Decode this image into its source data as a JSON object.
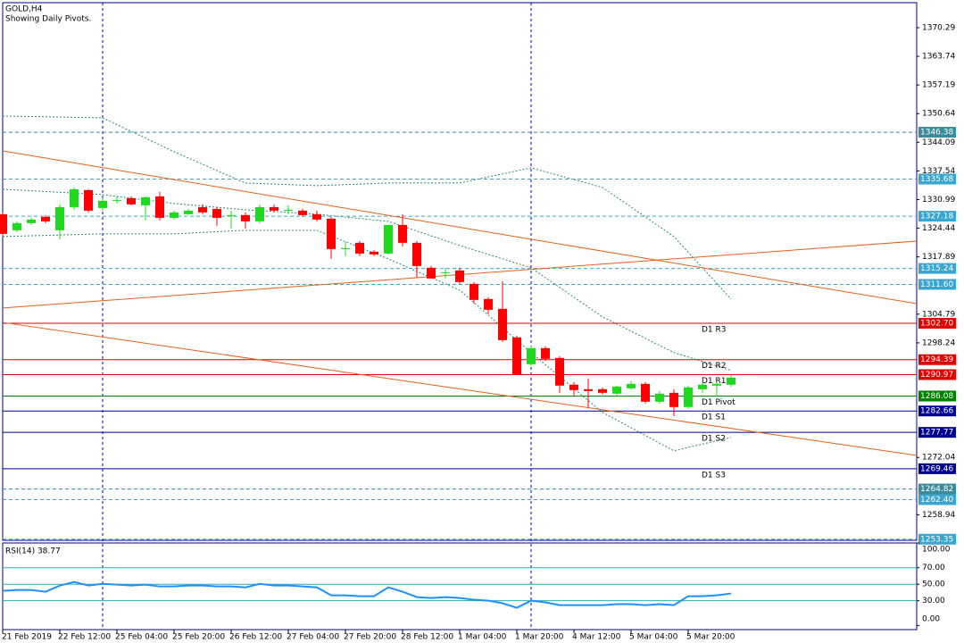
{
  "chart_data": {
    "type": "candlestick",
    "title": "GOLD,H4",
    "subtitle": "Showing Daily Pivots.",
    "categories": [
      "21 Feb 2019",
      null,
      null,
      null,
      "22 Feb 12:00",
      null,
      null,
      null,
      "25 Feb 04:00",
      null,
      null,
      null,
      "25 Feb 20:00",
      null,
      null,
      null,
      "26 Feb 12:00",
      null,
      null,
      null,
      "27 Feb 04:00",
      null,
      null,
      null,
      "27 Feb 20:00",
      null,
      null,
      null,
      "28 Feb 12:00",
      null,
      null,
      null,
      "1 Mar 04:00",
      null,
      null,
      null,
      "1 Mar 20:00",
      null,
      null,
      null,
      "4 Mar 12:00",
      null,
      null,
      null,
      "5 Mar 04:00",
      null,
      null,
      null,
      "5 Mar 20:00",
      null,
      null,
      null
    ],
    "open": [
      1327.64,
      1323.97,
      1325.6,
      1327.03,
      1323.97,
      1329.27,
      1333.15,
      1329.07,
      1330.91,
      1331.31,
      1329.68,
      1331.72,
      1326.82,
      1327.64,
      1329.27,
      1328.86,
      1327.23,
      1327.44,
      1326.01,
      1329.27,
      1328.46,
      1328.46,
      1327.64,
      1326.62,
      1319.68,
      1321.11,
      1319.07,
      1318.66,
      1325.19,
      1321.11,
      1315.4,
      1314.17,
      1314.78,
      1311.72,
      1308.25,
      1306.01,
      1299.48,
      1293.35,
      1297.03,
      1294.78,
      1288.66,
      1287.64,
      1287.64,
      1286.62,
      1287.84,
      1288.86,
      1284.78,
      1286.82,
      1283.56,
      1287.64,
      1288.46,
      1288.66
    ],
    "high": [
      1328.05,
      1326.01,
      1326.82,
      1327.44,
      1329.89,
      1333.76,
      1333.35,
      1331.31,
      1331.72,
      1331.72,
      1331.72,
      1332.74,
      1328.46,
      1328.86,
      1329.89,
      1329.27,
      1328.46,
      1328.05,
      1329.89,
      1329.89,
      1329.68,
      1328.86,
      1328.46,
      1327.03,
      1321.31,
      1321.52,
      1319.48,
      1325.19,
      1327.64,
      1321.52,
      1315.8,
      1315.4,
      1315.4,
      1312.13,
      1308.66,
      1312.33,
      1299.89,
      1297.44,
      1297.44,
      1295.19,
      1289.27,
      1290.09,
      1288.05,
      1288.46,
      1289.48,
      1289.27,
      1287.23,
      1287.64,
      1288.46,
      1289.27,
      1289.27,
      1290.91
    ],
    "low": [
      1322.54,
      1323.56,
      1325.19,
      1325.6,
      1321.93,
      1328.66,
      1328.05,
      1328.46,
      1330.09,
      1329.68,
      1326.21,
      1326.21,
      1326.42,
      1327.44,
      1327.64,
      1324.99,
      1324.38,
      1324.38,
      1325.6,
      1328.05,
      1327.64,
      1327.03,
      1326.01,
      1317.44,
      1318.05,
      1318.05,
      1318.05,
      1318.46,
      1320.29,
      1313.15,
      1312.95,
      1312.95,
      1311.72,
      1307.23,
      1304.78,
      1298.46,
      1290.91,
      1292.95,
      1294.17,
      1286.82,
      1286.01,
      1283.35,
      1286.42,
      1286.21,
      1287.44,
      1284.37,
      1284.37,
      1281.52,
      1283.15,
      1286.82,
      1286.01,
      1288.25
    ],
    "close": [
      1323.15,
      1325.6,
      1326.42,
      1326.01,
      1329.27,
      1333.35,
      1328.46,
      1330.7,
      1330.91,
      1329.89,
      1331.52,
      1326.82,
      1328.05,
      1328.46,
      1328.05,
      1326.82,
      1327.44,
      1326.01,
      1329.27,
      1328.46,
      1328.66,
      1327.44,
      1326.42,
      1319.68,
      1319.89,
      1318.66,
      1318.46,
      1325.19,
      1321.11,
      1315.8,
      1312.95,
      1314.38,
      1312.13,
      1308.05,
      1305.8,
      1298.86,
      1290.91,
      1297.03,
      1294.58,
      1288.46,
      1287.44,
      1287.23,
      1286.82,
      1288.25,
      1288.86,
      1284.78,
      1286.62,
      1283.56,
      1288.05,
      1288.66,
      1288.86,
      1290.29
    ],
    "up_color": "#1fd81f",
    "down_color": "#ff0000",
    "ylim": [
      1253.1,
      1376.0
    ],
    "yticks": [
      1370.29,
      1363.74,
      1357.19,
      1350.64,
      1344.09,
      1337.54,
      1330.99,
      1324.44,
      1317.89,
      1304.79,
      1298.24,
      1272.04,
      1258.94
    ],
    "xlim": [
      0,
      64
    ],
    "bands": {
      "color": "#2e8b74",
      "x": [
        0,
        7,
        12,
        17,
        22,
        27,
        32,
        37,
        42,
        47,
        51
      ],
      "upper": [
        1350.09,
        1349.68,
        1341.93,
        1334.78,
        1334.17,
        1334.78,
        1334.78,
        1338.25,
        1333.76,
        1322.54,
        1308.25
      ],
      "middle": [
        1333.35,
        1332.13,
        1330.09,
        1328.66,
        1327.64,
        1326.01,
        1320.5,
        1315.4,
        1304.17,
        1296.01,
        1291.93
      ],
      "lower": [
        1322.54,
        1323.15,
        1323.15,
        1323.97,
        1323.97,
        1317.44,
        1310.29,
        1296.01,
        1282.33,
        1273.56,
        1276.62
      ]
    },
    "trendlines": [
      {
        "color": "#e8601c",
        "x": [
          0,
          64
        ],
        "y": [
          1342.1,
          1307.2
        ]
      },
      {
        "color": "#e8601c",
        "x": [
          0,
          64
        ],
        "y": [
          1306.2,
          1321.5
        ]
      },
      {
        "color": "#e8601c",
        "x": [
          0,
          64
        ],
        "y": [
          1302.9,
          1272.5
        ]
      }
    ],
    "levels": [
      {
        "value": 1346.38,
        "color": "#3a8a9a",
        "style": "dashed"
      },
      {
        "value": 1335.68,
        "color": "#3aa6d0",
        "style": "dashed"
      },
      {
        "value": 1327.18,
        "color": "#3aa6d0",
        "style": "dashed"
      },
      {
        "value": 1315.24,
        "color": "#3aa6d0",
        "style": "dashed"
      },
      {
        "value": 1311.6,
        "label": "1311.60",
        "color": "#3aa6d0",
        "style": "dashed"
      },
      {
        "value": 1302.7,
        "label": "1302.70",
        "name": "D1 R3",
        "color": "#e00000",
        "style": "solid"
      },
      {
        "value": 1294.39,
        "name": "D1 R2",
        "color": "#e00000",
        "style": "solid"
      },
      {
        "value": 1290.97,
        "name": "D1 R1",
        "color": "#e00000",
        "style": "solid"
      },
      {
        "value": 1286.08,
        "name": "D1 Pivot",
        "color": "#008000",
        "style": "solid"
      },
      {
        "value": 1282.66,
        "name": "D1 S1",
        "color": "#000090",
        "style": "solid"
      },
      {
        "value": 1277.77,
        "name": "D1 S2",
        "color": "#000090",
        "style": "solid"
      },
      {
        "value": 1269.46,
        "name": "D1 S3",
        "color": "#000090",
        "style": "solid"
      },
      {
        "value": 1264.82,
        "color": "#3a8a9a",
        "style": "dashed"
      },
      {
        "value": 1262.4,
        "label": "1262.40",
        "color": "#3aa6d0",
        "style": "dashed"
      },
      {
        "value": 1253.35,
        "color": "#3aa6d0",
        "style": "dashed"
      }
    ],
    "indicator": {
      "title": "RSI(14) 38.77",
      "color": "#1e90ff",
      "ylim": [
        -5,
        100
      ],
      "yticks": [
        {
          "value": 100,
          "label": "100.00"
        },
        {
          "value": 70,
          "label": "70.00"
        },
        {
          "value": 50,
          "label": "50.00"
        },
        {
          "value": 30,
          "label": "30.00"
        },
        {
          "value": 0,
          "label": "0.00"
        }
      ],
      "levels": [
        70,
        50,
        30
      ],
      "level_color": "#20b2aa",
      "values": [
        41.9,
        43.0,
        43.0,
        40.9,
        48.4,
        52.7,
        48.4,
        50.5,
        49.5,
        48.4,
        49.5,
        47.3,
        47.3,
        48.4,
        48.4,
        47.3,
        47.3,
        46.2,
        50.5,
        48.4,
        48.4,
        47.3,
        46.2,
        36.6,
        36.6,
        35.5,
        35.5,
        46.2,
        40.9,
        34.4,
        33.3,
        34.4,
        33.3,
        31.2,
        30.1,
        26.9,
        21.5,
        30.1,
        28.0,
        24.7,
        24.7,
        24.7,
        24.7,
        25.8,
        25.8,
        24.7,
        25.8,
        24.7,
        35.5,
        35.5,
        36.6,
        38.77
      ]
    }
  }
}
